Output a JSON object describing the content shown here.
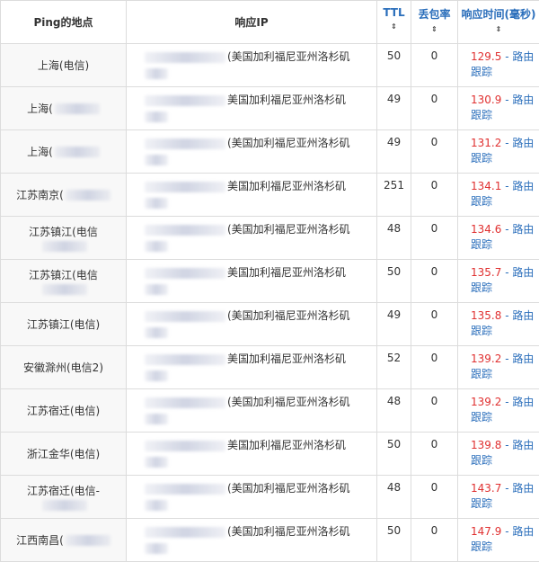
{
  "headers": {
    "location": "Ping的地点",
    "ip": "响应IP",
    "ttl": "TTL",
    "loss": "丢包率",
    "time": "响应时间(毫秒)",
    "sort_glyph": "⇕"
  },
  "trace_label": "- 路由跟踪",
  "rows": [
    {
      "location": "上海(电信)",
      "ip_suffix": "(美国加利福尼亚州洛杉矶",
      "ttl": "50",
      "loss": "0",
      "time": "129.5"
    },
    {
      "location": "上海(",
      "ip_suffix": "美国加利福尼亚州洛杉矶",
      "ttl": "49",
      "loss": "0",
      "time": "130.9"
    },
    {
      "location": "上海(",
      "ip_suffix": "(美国加利福尼亚州洛杉矶",
      "ttl": "49",
      "loss": "0",
      "time": "131.2"
    },
    {
      "location": "江苏南京(",
      "ip_suffix": "美国加利福尼亚州洛杉矶",
      "ttl": "251",
      "loss": "0",
      "time": "134.1"
    },
    {
      "location": "江苏镇江(电信",
      "ip_suffix": "(美国加利福尼亚州洛杉矶",
      "ttl": "48",
      "loss": "0",
      "time": "134.6"
    },
    {
      "location": "江苏镇江(电信",
      "ip_suffix": "美国加利福尼亚州洛杉矶",
      "ttl": "50",
      "loss": "0",
      "time": "135.7"
    },
    {
      "location": "江苏镇江(电信)",
      "ip_suffix": "(美国加利福尼亚州洛杉矶",
      "ttl": "49",
      "loss": "0",
      "time": "135.8"
    },
    {
      "location": "安徽滁州(电信2)",
      "ip_suffix": "美国加利福尼亚州洛杉矶",
      "ttl": "52",
      "loss": "0",
      "time": "139.2"
    },
    {
      "location": "江苏宿迁(电信)",
      "ip_suffix": "(美国加利福尼亚州洛杉矶",
      "ttl": "48",
      "loss": "0",
      "time": "139.2"
    },
    {
      "location": "浙江金华(电信)",
      "ip_suffix": "美国加利福尼亚州洛杉矶",
      "ttl": "50",
      "loss": "0",
      "time": "139.8"
    },
    {
      "location": "江苏宿迁(电信-",
      "ip_suffix": "(美国加利福尼亚州洛杉矶",
      "ttl": "48",
      "loss": "0",
      "time": "143.7"
    },
    {
      "location": "江西南昌(",
      "ip_suffix": "(美国加利福尼亚州洛杉矶",
      "ttl": "50",
      "loss": "0",
      "time": "147.9"
    }
  ]
}
